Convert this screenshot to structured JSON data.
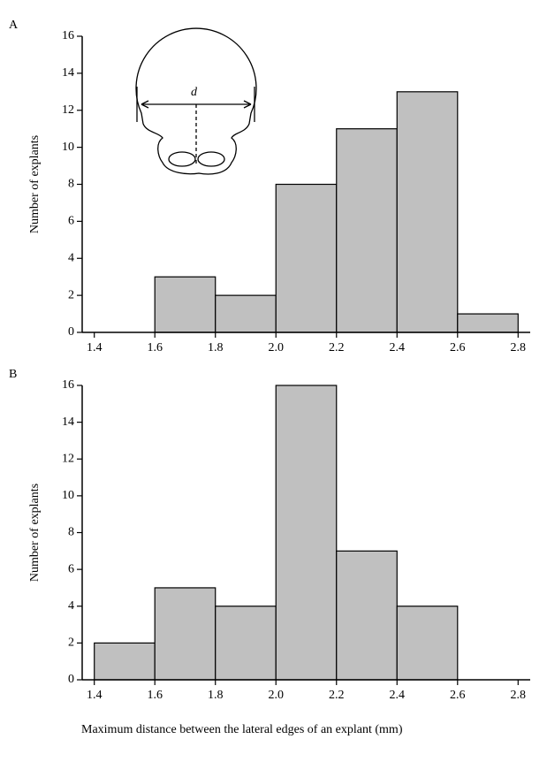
{
  "chart_data": [
    {
      "type": "histogram",
      "panel": "A",
      "ylabel": "Number of explants",
      "annotation": "d",
      "bins": [
        1.4,
        1.6,
        1.8,
        2.0,
        2.2,
        2.4,
        2.6,
        2.8
      ],
      "values": [
        0,
        3,
        2,
        8,
        11,
        13,
        1
      ],
      "color": "#c0c0c0",
      "xlim": [
        1.36,
        2.84
      ],
      "xticks": [
        1.4,
        1.6,
        1.8,
        {
          "value": 2,
          "label": "2.0"
        },
        2.2,
        2.4,
        2.6,
        2.8
      ],
      "ylim": [
        0,
        16
      ],
      "yticks": [
        0,
        2,
        4,
        6,
        8,
        10,
        12,
        14,
        16
      ]
    },
    {
      "type": "histogram",
      "panel": "B",
      "ylabel": "Number of explants",
      "xlabel": "Maximum distance between the lateral edges of an explant (mm)",
      "bins": [
        1.4,
        1.6,
        1.8,
        2.0,
        2.2,
        2.4,
        2.6,
        2.8
      ],
      "values": [
        2,
        5,
        4,
        16,
        7,
        4,
        0
      ],
      "color": "#c0c0c0",
      "xlim": [
        1.36,
        2.84
      ],
      "xticks": [
        1.4,
        1.6,
        1.8,
        {
          "value": 2,
          "label": "2.0"
        },
        2.2,
        2.4,
        2.6,
        2.8
      ],
      "ylim": [
        0,
        16
      ],
      "yticks": [
        0,
        2,
        4,
        6,
        8,
        10,
        12,
        14,
        16
      ]
    }
  ]
}
